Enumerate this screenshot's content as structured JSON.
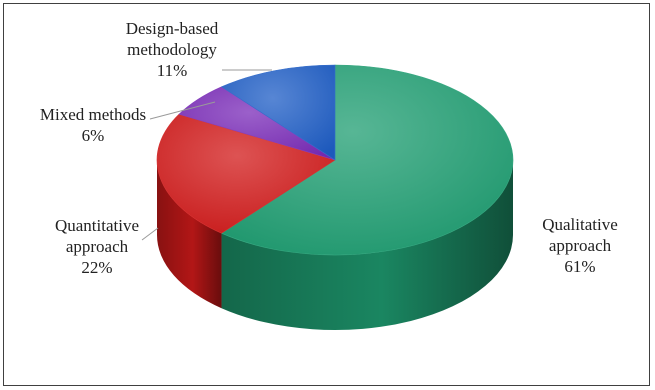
{
  "chart_data": {
    "type": "pie",
    "style": "3d",
    "title": "",
    "slices": [
      {
        "label_lines": [
          "Qualitative",
          "approach"
        ],
        "value": 61,
        "value_label": "61%",
        "color": "#1f9e72"
      },
      {
        "label_lines": [
          "Quantitative",
          "approach"
        ],
        "value": 22,
        "value_label": "22%",
        "color": "#d11a1a"
      },
      {
        "label_lines": [
          "Mixed methods"
        ],
        "value": 6,
        "value_label": "6%",
        "color": "#7a2bb8"
      },
      {
        "label_lines": [
          "Design-based",
          "methodology"
        ],
        "value": 11,
        "value_label": "11%",
        "color": "#1f5ec6"
      }
    ],
    "legend": "none",
    "data_labels": "outside with leader lines"
  }
}
